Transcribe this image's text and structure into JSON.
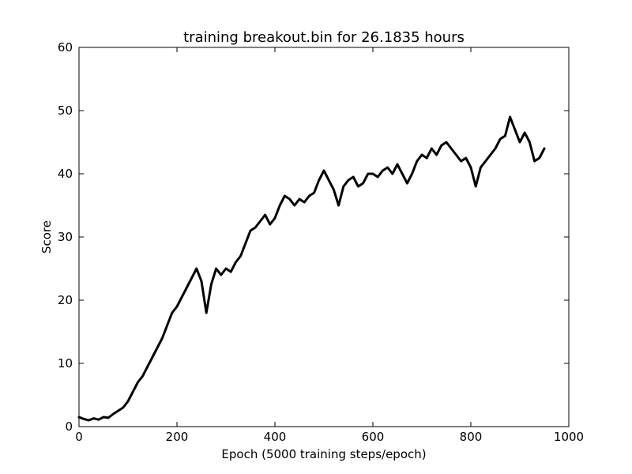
{
  "chart_data": {
    "type": "line",
    "title": "training breakout.bin for  26.1835 hours",
    "xlabel": "Epoch (5000 training steps/epoch)",
    "ylabel": "Score",
    "xlim": [
      0,
      1000
    ],
    "ylim": [
      0,
      60
    ],
    "xticks": [
      "0",
      "200",
      "400",
      "600",
      "800",
      "1000"
    ],
    "yticks": [
      "0",
      "10",
      "20",
      "30",
      "40",
      "50",
      "60"
    ],
    "grid": false,
    "legend": "none",
    "line_color": "#000000",
    "series": [
      {
        "x": [
          0,
          10,
          20,
          30,
          40,
          50,
          60,
          70,
          80,
          90,
          100,
          110,
          120,
          130,
          140,
          150,
          160,
          170,
          180,
          190,
          200,
          210,
          220,
          230,
          240,
          250,
          260,
          270,
          280,
          290,
          300,
          310,
          320,
          330,
          340,
          350,
          360,
          370,
          380,
          390,
          400,
          410,
          420,
          430,
          440,
          450,
          460,
          470,
          480,
          490,
          500,
          510,
          520,
          530,
          540,
          550,
          560,
          570,
          580,
          590,
          600,
          610,
          620,
          630,
          640,
          650,
          660,
          670,
          680,
          690,
          700,
          710,
          720,
          730,
          740,
          750,
          760,
          770,
          780,
          790,
          800,
          810,
          820,
          830,
          840,
          850,
          860,
          870,
          880,
          890,
          900,
          910,
          920,
          930,
          940,
          950
        ],
        "y": [
          1.5,
          1.2,
          1.0,
          1.3,
          1.1,
          1.5,
          1.4,
          2.0,
          2.5,
          3.0,
          4.0,
          5.5,
          7.0,
          8.0,
          9.5,
          11.0,
          12.5,
          14.0,
          16.0,
          18.0,
          19.0,
          20.5,
          22.0,
          23.5,
          25.0,
          23.0,
          18.0,
          22.5,
          25.0,
          24.0,
          25.0,
          24.5,
          26.0,
          27.0,
          29.0,
          31.0,
          31.5,
          32.5,
          33.5,
          32.0,
          33.0,
          35.0,
          36.5,
          36.0,
          35.0,
          36.0,
          35.5,
          36.5,
          37.0,
          39.0,
          40.5,
          39.0,
          37.5,
          35.0,
          38.0,
          39.0,
          39.5,
          38.0,
          38.5,
          40.0,
          40.0,
          39.5,
          40.5,
          41.0,
          40.0,
          41.5,
          40.0,
          38.5,
          40.0,
          42.0,
          43.0,
          42.5,
          44.0,
          43.0,
          44.5,
          45.0,
          44.0,
          43.0,
          42.0,
          42.5,
          41.0,
          38.0,
          41.0,
          42.0,
          43.0,
          44.0,
          45.5,
          46.0,
          49.0,
          47.0,
          45.0,
          46.5,
          45.0,
          42.0,
          42.5,
          44.0
        ]
      }
    ]
  }
}
